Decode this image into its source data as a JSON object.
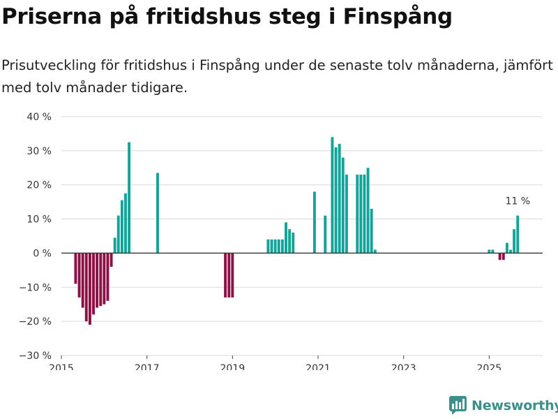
{
  "header": {
    "title": "Priserna på fritidshus steg i Finspång",
    "subtitle": "Prisutveckling för fritidshus i Finspång under de senaste tolv månaderna, jämfört med tolv månader tidigare."
  },
  "brand": {
    "name": "Newsworthy"
  },
  "colors": {
    "positive": "#12a39a",
    "negative": "#8c0f45",
    "grid": "#d9d9d9",
    "zero_line": "#333333"
  },
  "chart_data": {
    "type": "bar",
    "title": "Priserna på fritidshus steg i Finspång",
    "xlabel": "",
    "ylabel": "",
    "ylim": [
      -30,
      40
    ],
    "xlim": [
      2015.0,
      2026.25
    ],
    "y_ticks": [
      40,
      30,
      20,
      10,
      0,
      -10,
      -20,
      -30
    ],
    "y_tick_labels": [
      "40 %",
      "30 %",
      "20 %",
      "10 %",
      "0 %",
      "−10 %",
      "−20 %",
      "−30 %"
    ],
    "x_ticks": [
      2015,
      2017,
      2019,
      2021,
      2023,
      2025
    ],
    "x_tick_labels": [
      "2015",
      "2017",
      "2019",
      "2021",
      "2023",
      "2025"
    ],
    "annotation": {
      "x": 2025.667,
      "value": 11,
      "label": "11 %"
    },
    "series": [
      {
        "name": "Prisutveckling",
        "points": [
          {
            "x": 2015.333,
            "value": -9
          },
          {
            "x": 2015.417,
            "value": -13
          },
          {
            "x": 2015.5,
            "value": -16
          },
          {
            "x": 2015.583,
            "value": -20
          },
          {
            "x": 2015.667,
            "value": -21
          },
          {
            "x": 2015.75,
            "value": -18
          },
          {
            "x": 2015.833,
            "value": -16
          },
          {
            "x": 2015.917,
            "value": -15.5
          },
          {
            "x": 2016.0,
            "value": -15
          },
          {
            "x": 2016.083,
            "value": -14
          },
          {
            "x": 2016.167,
            "value": -4
          },
          {
            "x": 2016.25,
            "value": 4.5
          },
          {
            "x": 2016.333,
            "value": 11
          },
          {
            "x": 2016.417,
            "value": 15.5
          },
          {
            "x": 2016.5,
            "value": 17.5
          },
          {
            "x": 2016.583,
            "value": 32.5
          },
          {
            "x": 2017.25,
            "value": 23.5
          },
          {
            "x": 2018.833,
            "value": -13
          },
          {
            "x": 2018.917,
            "value": -13
          },
          {
            "x": 2019.0,
            "value": -13
          },
          {
            "x": 2019.833,
            "value": 4
          },
          {
            "x": 2019.917,
            "value": 4
          },
          {
            "x": 2020.0,
            "value": 4
          },
          {
            "x": 2020.083,
            "value": 4
          },
          {
            "x": 2020.167,
            "value": 4
          },
          {
            "x": 2020.25,
            "value": 9
          },
          {
            "x": 2020.333,
            "value": 7
          },
          {
            "x": 2020.417,
            "value": 6
          },
          {
            "x": 2020.917,
            "value": 18
          },
          {
            "x": 2021.167,
            "value": 11
          },
          {
            "x": 2021.333,
            "value": 34
          },
          {
            "x": 2021.417,
            "value": 31
          },
          {
            "x": 2021.5,
            "value": 32
          },
          {
            "x": 2021.583,
            "value": 28
          },
          {
            "x": 2021.667,
            "value": 23
          },
          {
            "x": 2021.917,
            "value": 23
          },
          {
            "x": 2022.0,
            "value": 23
          },
          {
            "x": 2022.083,
            "value": 23
          },
          {
            "x": 2022.167,
            "value": 25
          },
          {
            "x": 2022.25,
            "value": 13
          },
          {
            "x": 2022.333,
            "value": 1
          },
          {
            "x": 2025.0,
            "value": 1
          },
          {
            "x": 2025.083,
            "value": 1
          },
          {
            "x": 2025.25,
            "value": -2
          },
          {
            "x": 2025.333,
            "value": -2
          },
          {
            "x": 2025.417,
            "value": 3
          },
          {
            "x": 2025.5,
            "value": 1
          },
          {
            "x": 2025.583,
            "value": 7
          },
          {
            "x": 2025.667,
            "value": 11
          }
        ]
      }
    ]
  }
}
